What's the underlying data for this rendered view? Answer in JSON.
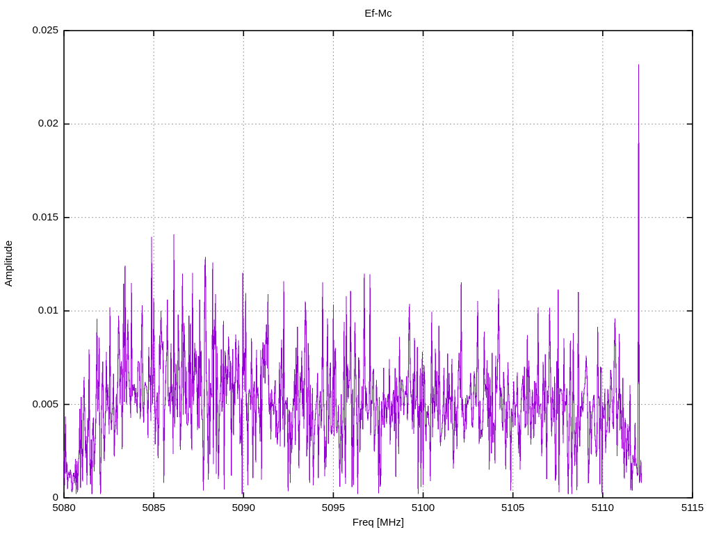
{
  "window": {
    "background": "#ffffff"
  },
  "chart_data": {
    "type": "line",
    "title": "Ef-Mc",
    "xlabel": "Freq [MHz]",
    "ylabel": "Amplitude",
    "xlim": [
      5080,
      5115
    ],
    "ylim": [
      0,
      0.025
    ],
    "xticks": [
      5080,
      5085,
      5090,
      5095,
      5100,
      5105,
      5110,
      5115
    ],
    "xtick_labels": [
      "5080",
      "5085",
      "5090",
      "5095",
      "5100",
      "5105",
      "5110",
      "5115"
    ],
    "yticks": [
      0,
      0.005,
      0.01,
      0.015,
      0.02,
      0.025
    ],
    "ytick_labels": [
      "0",
      "0.005",
      "0.01",
      "0.015",
      "0.02",
      "0.025"
    ],
    "grid": true,
    "grid_color": "#9e9e9e",
    "axis_color": "#000000",
    "line_color": "#9400d3",
    "legend": "none",
    "series": [
      {
        "name": "Ef-Mc",
        "x_start": 5080.0,
        "x_end": 5112.16,
        "sample_step": 0.04,
        "seed": 20507,
        "value_floor": 0.0002,
        "value_ceiling": 0.0145,
        "envelope": [
          [
            5080.0,
            0.0017,
            0.0013
          ],
          [
            5080.6,
            0.0012,
            0.001
          ],
          [
            5081.2,
            0.0025,
            0.0018
          ],
          [
            5081.8,
            0.004,
            0.0024
          ],
          [
            5082.5,
            0.0053,
            0.0028
          ],
          [
            5083.5,
            0.0058,
            0.003
          ],
          [
            5085.0,
            0.006,
            0.0032
          ],
          [
            5086.3,
            0.0063,
            0.0034
          ],
          [
            5087.5,
            0.0058,
            0.0034
          ],
          [
            5089.0,
            0.006,
            0.003
          ],
          [
            5090.5,
            0.0057,
            0.003
          ],
          [
            5092.0,
            0.0053,
            0.003
          ],
          [
            5093.5,
            0.0055,
            0.003
          ],
          [
            5095.0,
            0.005,
            0.0028
          ],
          [
            5096.5,
            0.0053,
            0.0027
          ],
          [
            5098.0,
            0.0051,
            0.0026
          ],
          [
            5099.5,
            0.0053,
            0.0026
          ],
          [
            5101.0,
            0.0049,
            0.0027
          ],
          [
            5102.5,
            0.005,
            0.0026
          ],
          [
            5104.0,
            0.0049,
            0.0027
          ],
          [
            5105.5,
            0.0046,
            0.0027
          ],
          [
            5107.0,
            0.0049,
            0.0026
          ],
          [
            5108.5,
            0.0048,
            0.0025
          ],
          [
            5110.0,
            0.0047,
            0.0026
          ],
          [
            5110.8,
            0.0049,
            0.0029
          ],
          [
            5111.4,
            0.0028,
            0.0018
          ],
          [
            5111.9,
            0.0013,
            0.0009
          ],
          [
            5112.16,
            0.0007,
            0.0005
          ]
        ],
        "notable_peaks": [
          {
            "x": 5082.57,
            "y": 0.0102
          },
          {
            "x": 5083.78,
            "y": 0.0115
          },
          {
            "x": 5084.35,
            "y": 0.0103
          },
          {
            "x": 5085.0,
            "y": 0.0107
          },
          {
            "x": 5086.1,
            "y": 0.0141
          },
          {
            "x": 5086.62,
            "y": 0.012
          },
          {
            "x": 5087.57,
            "y": 0.0106
          },
          {
            "x": 5088.42,
            "y": 0.0109
          },
          {
            "x": 5091.35,
            "y": 0.0109
          },
          {
            "x": 5093.42,
            "y": 0.0105
          },
          {
            "x": 5094.7,
            "y": 0.0096
          },
          {
            "x": 5096.2,
            "y": 0.0094
          },
          {
            "x": 5099.2,
            "y": 0.0092
          },
          {
            "x": 5100.9,
            "y": 0.0092
          },
          {
            "x": 5103.4,
            "y": 0.0089
          },
          {
            "x": 5105.8,
            "y": 0.0087
          },
          {
            "x": 5108.2,
            "y": 0.0084
          },
          {
            "x": 5110.7,
            "y": 0.0096
          },
          {
            "x": 5112.0,
            "y": 0.0232
          }
        ],
        "deep_dips": [
          {
            "x": 5080.75,
            "y": 0.0003
          },
          {
            "x": 5085.55,
            "y": 0.0008
          },
          {
            "x": 5087.78,
            "y": 0.0004
          },
          {
            "x": 5088.62,
            "y": 0.001
          },
          {
            "x": 5092.6,
            "y": 0.0008
          },
          {
            "x": 5093.7,
            "y": 0.0008
          },
          {
            "x": 5097.6,
            "y": 0.0006
          },
          {
            "x": 5100.4,
            "y": 0.0009
          },
          {
            "x": 5104.9,
            "y": 0.0004
          },
          {
            "x": 5106.9,
            "y": 0.001
          },
          {
            "x": 5111.65,
            "y": 0.0004
          }
        ],
        "main_spike": {
          "x": 5112.0,
          "y": 0.0232
        }
      }
    ]
  }
}
